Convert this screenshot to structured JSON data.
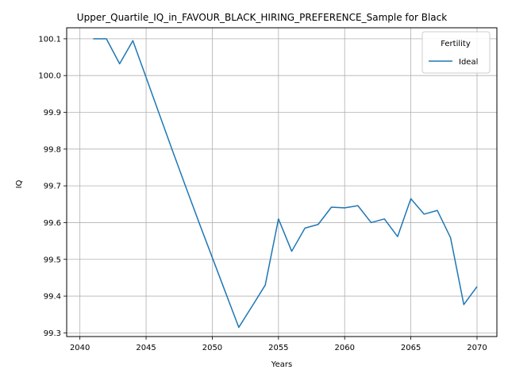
{
  "chart_data": {
    "type": "line",
    "title": "Upper_Quartile_IQ_in_FAVOUR_BLACK_HIRING_PREFERENCE_Sample for Black",
    "xlabel": "Years",
    "ylabel": "IQ",
    "xlim": [
      2039,
      2071.5
    ],
    "ylim": [
      99.29,
      100.13
    ],
    "xticks": [
      2040,
      2045,
      2050,
      2055,
      2060,
      2065,
      2070
    ],
    "yticks": [
      99.3,
      99.4,
      99.5,
      99.6,
      99.7,
      99.8,
      99.9,
      100.0,
      100.1
    ],
    "ytick_labels": [
      "99.3",
      "99.4",
      "99.5",
      "99.6",
      "99.7",
      "99.8",
      "99.9",
      "100.0",
      "100.1"
    ],
    "grid": true,
    "legend": {
      "title": "Fertility",
      "placement": "upper right"
    },
    "series": [
      {
        "name": "Ideal",
        "color": "#1f77b4",
        "x": [
          2041,
          2042,
          2043,
          2044,
          2045,
          2046,
          2047,
          2048,
          2049,
          2050,
          2051,
          2052,
          2053,
          2054,
          2055,
          2056,
          2057,
          2058,
          2059,
          2060,
          2061,
          2062,
          2063,
          2064,
          2065,
          2066,
          2067,
          2068,
          2069,
          2070
        ],
        "y": [
          100.1,
          100.1,
          100.032,
          100.095,
          99.995,
          99.895,
          99.795,
          99.697,
          99.6,
          99.505,
          99.41,
          99.315,
          99.372,
          99.43,
          99.61,
          99.522,
          99.585,
          99.595,
          99.642,
          99.64,
          99.646,
          99.6,
          99.61,
          99.562,
          99.665,
          99.623,
          99.633,
          99.559,
          99.377,
          99.426
        ]
      }
    ]
  }
}
